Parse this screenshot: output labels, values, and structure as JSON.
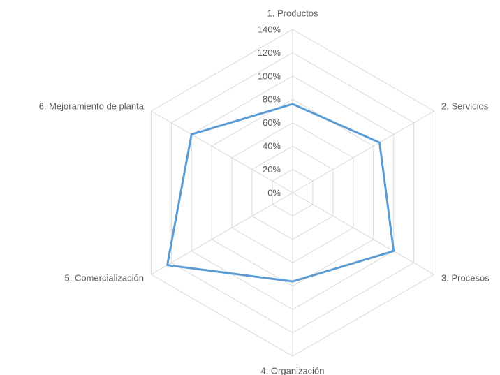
{
  "chart_data": {
    "type": "radar",
    "categories": [
      "1. Productos",
      "2. Servicios",
      "3. Procesos",
      "4. Organización",
      "5. Comercialización",
      "6. Mejoramiento de planta"
    ],
    "values": [
      76,
      86,
      100,
      76,
      124,
      100
    ],
    "color": "#5b9bd5",
    "ylim": [
      0,
      140
    ],
    "yticks": [
      {
        "value": 0,
        "label": "0%"
      },
      {
        "value": 20,
        "label": "20%"
      },
      {
        "value": 40,
        "label": "40%"
      },
      {
        "value": 60,
        "label": "60%"
      },
      {
        "value": 80,
        "label": "80%"
      },
      {
        "value": 100,
        "label": "100%"
      },
      {
        "value": 120,
        "label": "120%"
      },
      {
        "value": 140,
        "label": "140%"
      }
    ],
    "grid": true
  }
}
